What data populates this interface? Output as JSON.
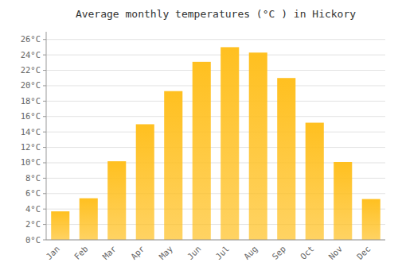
{
  "chart_data": {
    "type": "bar",
    "title": "Average monthly temperatures (°C ) in Hickory",
    "categories": [
      "Jan",
      "Feb",
      "Mar",
      "Apr",
      "May",
      "Jun",
      "Jul",
      "Aug",
      "Sep",
      "Oct",
      "Nov",
      "Dec"
    ],
    "values": [
      3.7,
      5.4,
      10.2,
      15.0,
      19.3,
      23.1,
      25.0,
      24.3,
      21.0,
      15.2,
      10.1,
      5.3
    ],
    "color": "#FFC020",
    "ylim": [
      0,
      27
    ],
    "yticks": [
      {
        "value": 0,
        "label": "0°C"
      },
      {
        "value": 2,
        "label": "2°C"
      },
      {
        "value": 4,
        "label": "4°C"
      },
      {
        "value": 6,
        "label": "6°C"
      },
      {
        "value": 8,
        "label": "8°C"
      },
      {
        "value": 10,
        "label": "10°C"
      },
      {
        "value": 12,
        "label": "12°C"
      },
      {
        "value": 14,
        "label": "14°C"
      },
      {
        "value": 16,
        "label": "16°C"
      },
      {
        "value": 18,
        "label": "18°C"
      },
      {
        "value": 20,
        "label": "20°C"
      },
      {
        "value": 22,
        "label": "22°C"
      },
      {
        "value": 24,
        "label": "24°C"
      },
      {
        "value": 26,
        "label": "26°C"
      }
    ],
    "grid": true
  }
}
